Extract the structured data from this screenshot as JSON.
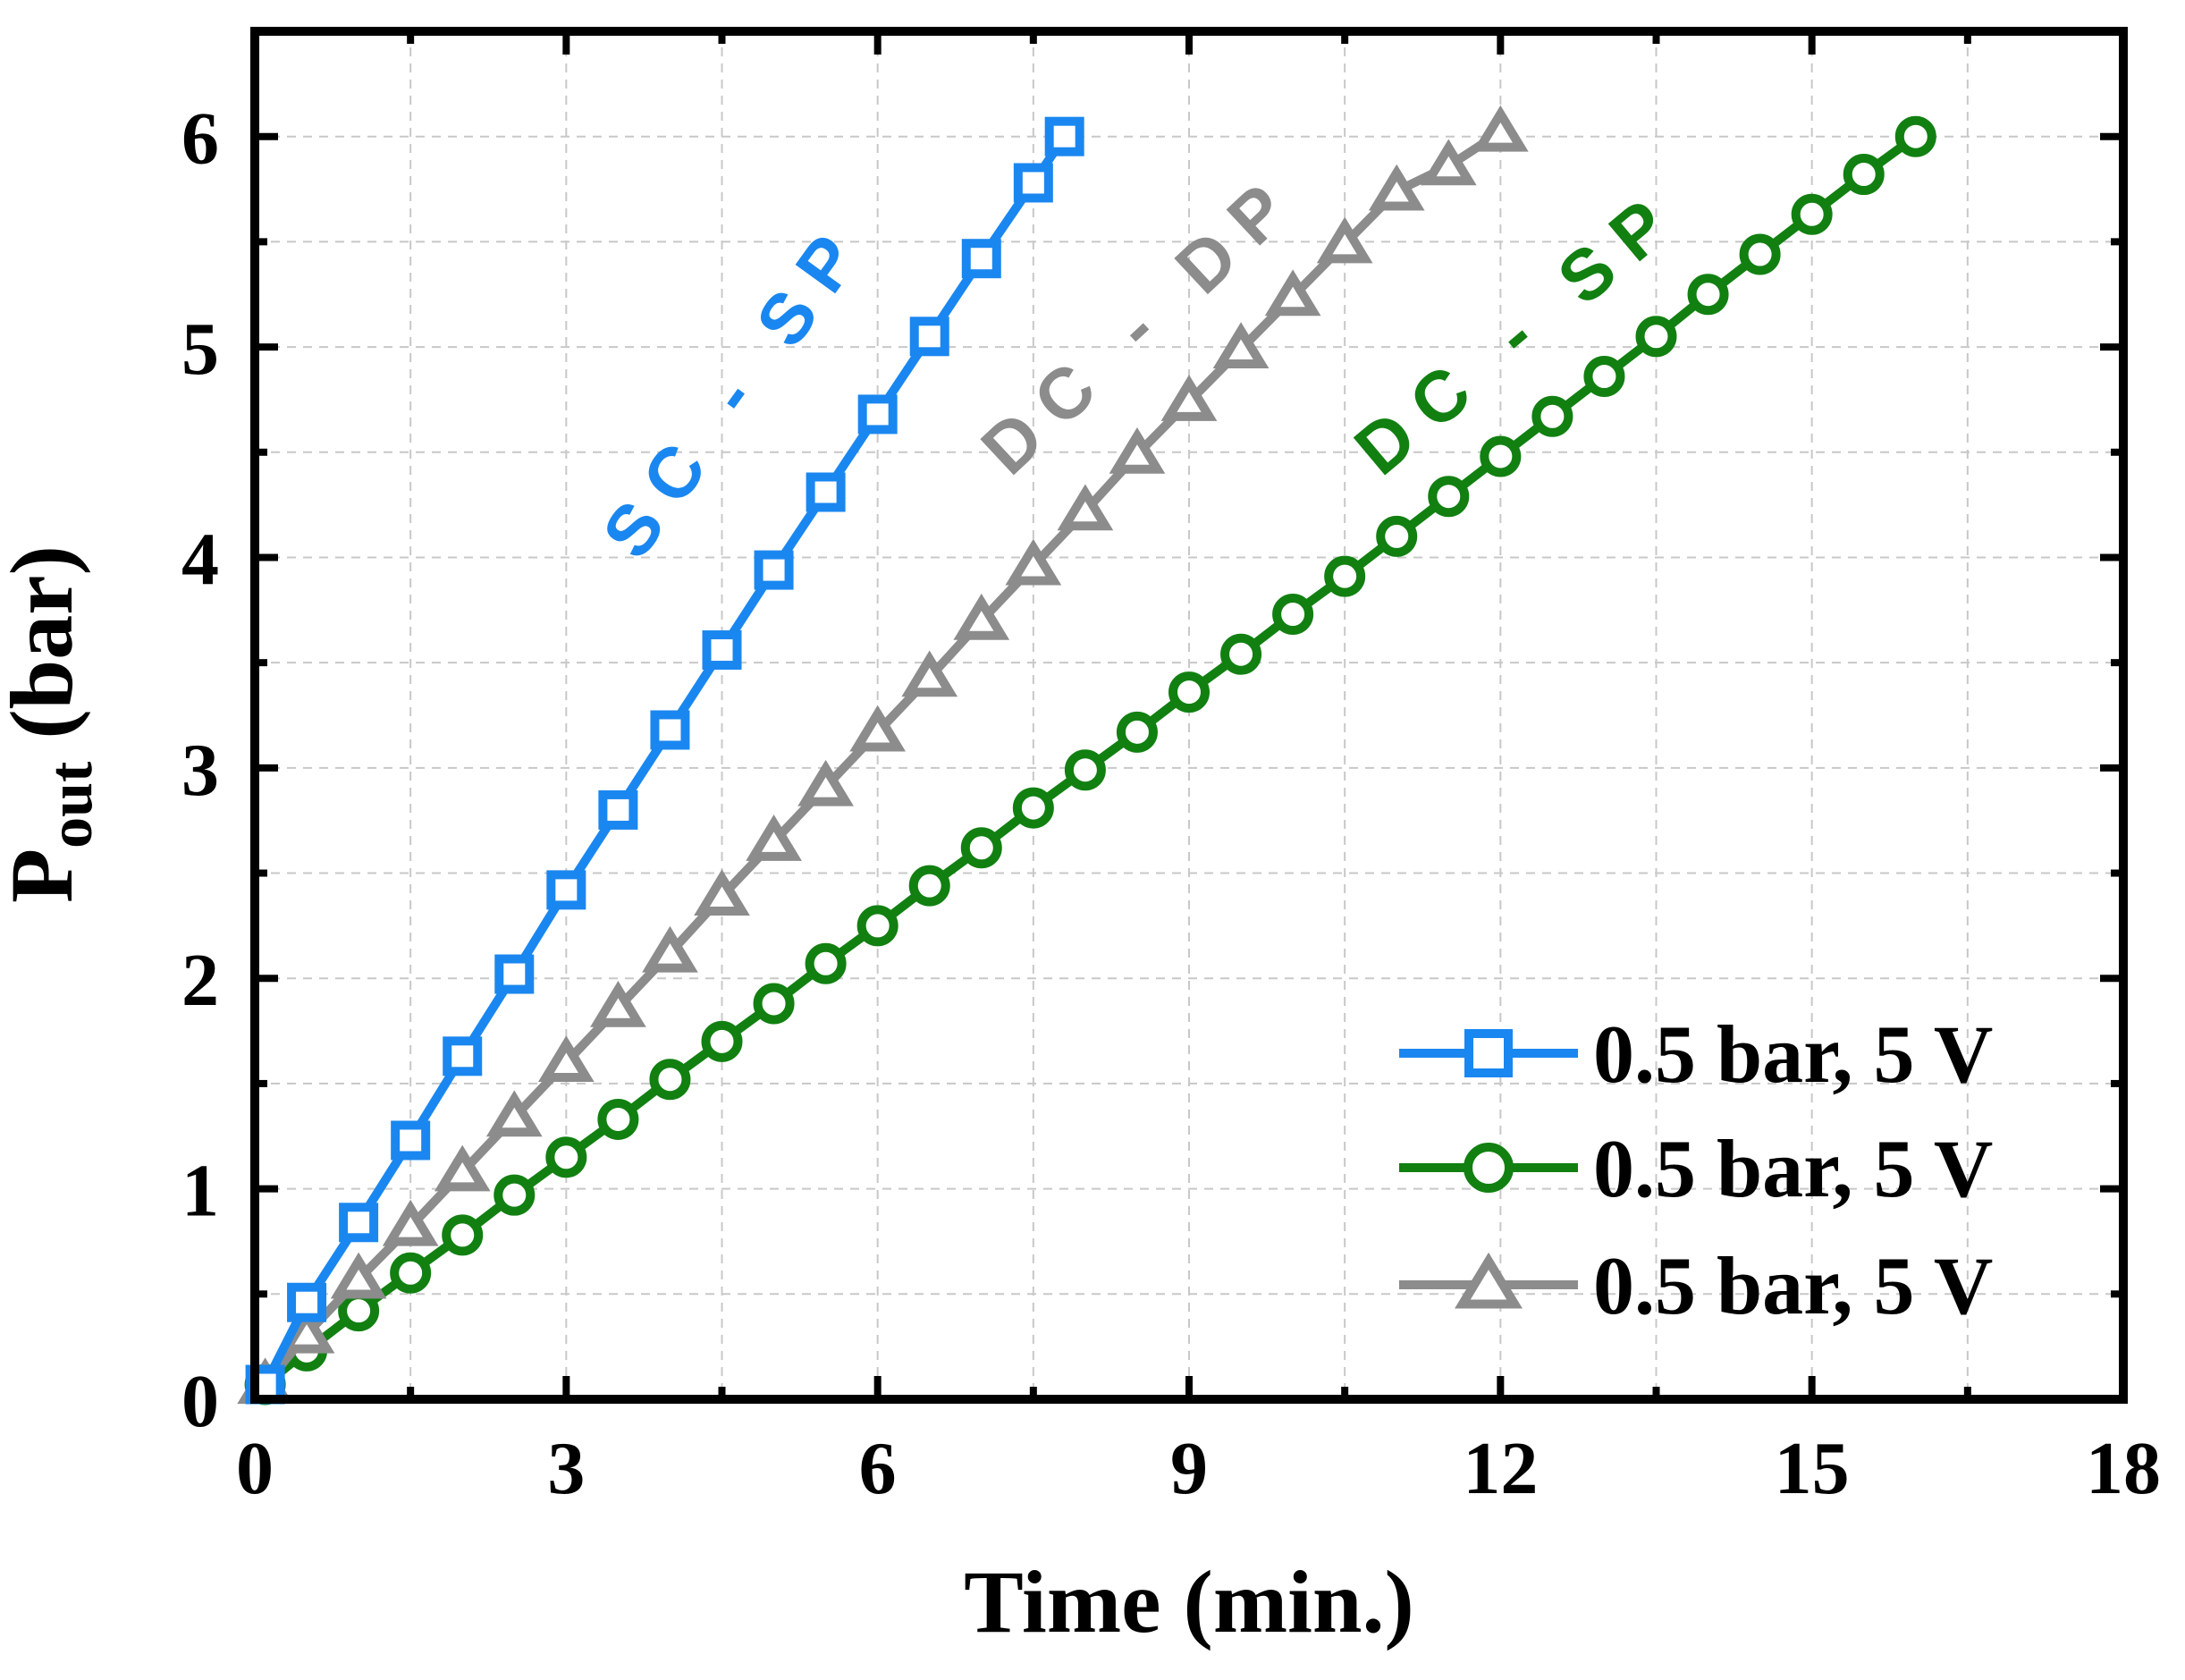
{
  "chart_data": {
    "type": "line",
    "title": "",
    "xlabel": "Time (min.)",
    "ylabel": {
      "main": "P",
      "sub": "out",
      "unit": " (bar)"
    },
    "xlim": [
      0,
      18
    ],
    "ylim": [
      0,
      6.5
    ],
    "xticks": [
      0,
      3,
      6,
      9,
      12,
      15,
      18
    ],
    "yticks": [
      0,
      1,
      2,
      3,
      4,
      5,
      6
    ],
    "grid": true,
    "legend_position": "bottom-right",
    "series": [
      {
        "name": "0.5 bar, 5 V",
        "annotation": "SC - SP",
        "color": "#1a87f0",
        "marker": "square",
        "x": [
          0.1,
          0.5,
          1,
          1.5,
          2,
          2.5,
          3,
          3.5,
          4,
          4.5,
          5,
          5.5,
          6,
          6.5,
          7,
          7.5,
          7.8
        ],
        "y": [
          0.07,
          0.46,
          0.84,
          1.23,
          1.63,
          2.02,
          2.42,
          2.8,
          3.18,
          3.56,
          3.94,
          4.31,
          4.68,
          5.05,
          5.42,
          5.78,
          6.0
        ]
      },
      {
        "name": "0.5 bar, 5 V",
        "annotation": "DC - SP",
        "color": "#118011",
        "marker": "circle",
        "x": [
          0.1,
          0.5,
          1,
          1.5,
          2,
          2.5,
          3,
          3.5,
          4,
          4.5,
          5,
          5.5,
          6,
          6.5,
          7,
          7.5,
          8,
          8.5,
          9,
          9.5,
          10,
          10.5,
          11,
          11.5,
          12,
          12.5,
          13,
          13.5,
          14,
          14.5,
          15,
          15.5,
          16
        ],
        "y": [
          0.07,
          0.23,
          0.42,
          0.6,
          0.78,
          0.97,
          1.15,
          1.33,
          1.52,
          1.7,
          1.88,
          2.07,
          2.25,
          2.44,
          2.62,
          2.81,
          2.99,
          3.17,
          3.36,
          3.54,
          3.73,
          3.91,
          4.1,
          4.29,
          4.48,
          4.67,
          4.86,
          5.05,
          5.25,
          5.44,
          5.63,
          5.82,
          6.0
        ]
      },
      {
        "name": "0.5 bar, 5 V",
        "annotation": "DC - DP",
        "color": "#8c8c8c",
        "marker": "triangle",
        "x": [
          0.1,
          0.5,
          1,
          1.5,
          2,
          2.5,
          3,
          3.5,
          4,
          4.5,
          5,
          5.5,
          6,
          6.5,
          7,
          7.5,
          8,
          8.5,
          9,
          9.5,
          10,
          10.5,
          11,
          11.5,
          12
        ],
        "y": [
          0.07,
          0.31,
          0.57,
          0.82,
          1.08,
          1.34,
          1.6,
          1.86,
          2.12,
          2.39,
          2.65,
          2.91,
          3.17,
          3.43,
          3.7,
          3.96,
          4.22,
          4.49,
          4.74,
          4.99,
          5.24,
          5.49,
          5.74,
          5.86,
          6.02
        ]
      }
    ]
  }
}
